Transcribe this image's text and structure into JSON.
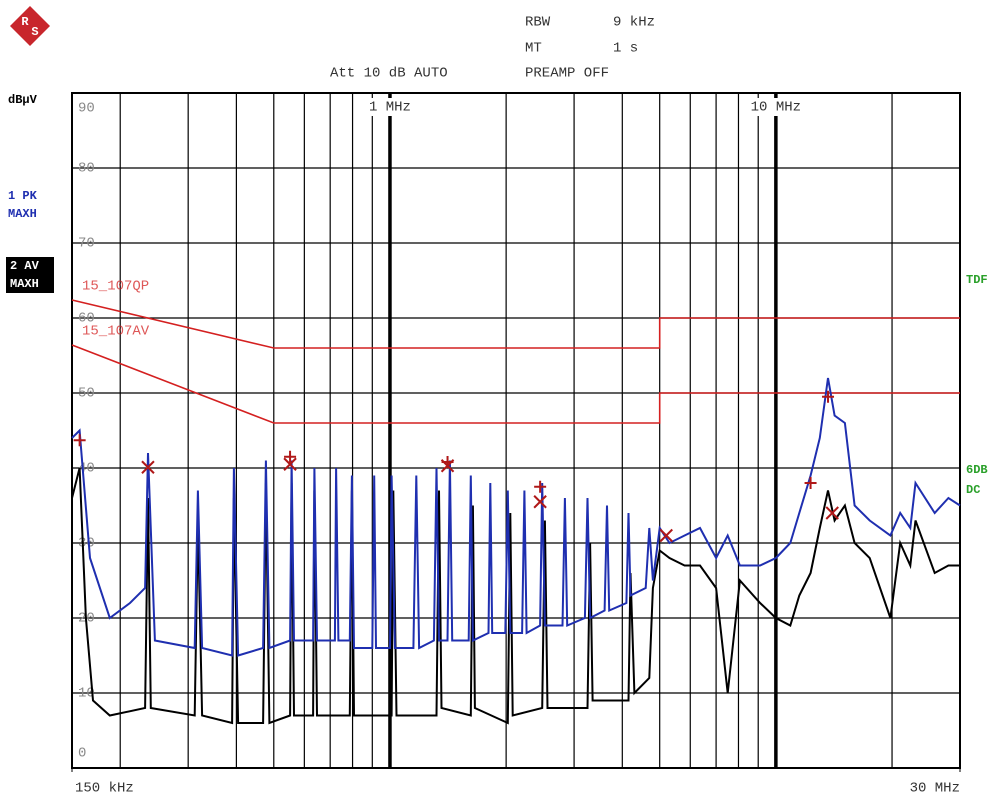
{
  "logo": [
    "R",
    "S"
  ],
  "settings": {
    "rbw_label": "RBW",
    "rbw": "9 kHz",
    "mt_label": "MT",
    "mt": "1 s",
    "att": "Att 10 dB AUTO",
    "preamp": "PREAMP OFF"
  },
  "side_labels": {
    "tdf": "TDF",
    "db": "6DB",
    "dc": "DC"
  },
  "chart_data": {
    "type": "line",
    "y_label": "dBµV",
    "log_x": true,
    "grid": true,
    "xlim": [
      0.15,
      30
    ],
    "xticks": [
      {
        "value": 0.15,
        "label": "150 kHz"
      },
      {
        "value": 1,
        "label": "1 MHz"
      },
      {
        "value": 10,
        "label": "10 MHz"
      },
      {
        "value": 30,
        "label": "30 MHz"
      }
    ],
    "x_minor_grid": [
      0.2,
      0.3,
      0.4,
      0.5,
      0.6,
      0.7,
      0.8,
      0.9,
      2,
      3,
      4,
      5,
      6,
      7,
      8,
      9,
      20
    ],
    "ylim": [
      0,
      90
    ],
    "yticks": [
      0,
      10,
      20,
      30,
      40,
      50,
      60,
      70,
      80,
      90
    ],
    "series": [
      {
        "name": "1 PK",
        "detector": "MAXH",
        "color": "#1f2fb0",
        "x": [
          0.15,
          0.157,
          0.167,
          0.188,
          0.212,
          0.232,
          0.236,
          0.246,
          0.312,
          0.318,
          0.326,
          0.39,
          0.394,
          0.404,
          0.469,
          0.477,
          0.487,
          0.551,
          0.556,
          0.564,
          0.632,
          0.637,
          0.647,
          0.72,
          0.725,
          0.735,
          0.787,
          0.797,
          0.807,
          0.9,
          0.91,
          0.92,
          1.0,
          1.01,
          1.03,
          1.15,
          1.17,
          1.19,
          1.3,
          1.32,
          1.34,
          1.41,
          1.43,
          1.45,
          1.6,
          1.62,
          1.64,
          1.8,
          1.82,
          1.84,
          1.99,
          2.02,
          2.05,
          2.2,
          2.23,
          2.26,
          2.45,
          2.48,
          2.52,
          2.8,
          2.84,
          2.88,
          3.2,
          3.25,
          3.3,
          3.6,
          3.65,
          3.7,
          4.1,
          4.15,
          4.2,
          4.6,
          4.7,
          4.8,
          5.0,
          5.3,
          5.8,
          6.36,
          7.0,
          7.5,
          8.07,
          9.1,
          10.0,
          10.9,
          11.5,
          12.3,
          13.0,
          13.65,
          14.2,
          15.1,
          16.0,
          17.5,
          19.8,
          21,
          22.3,
          23,
          25.8,
          28,
          30
        ],
        "values": [
          44,
          45,
          28,
          20,
          22,
          24,
          42,
          17,
          16,
          37,
          16,
          15,
          40,
          15,
          16,
          41,
          16,
          17,
          41,
          17,
          17,
          40,
          17,
          17,
          40,
          17,
          17,
          39,
          16,
          16,
          39,
          16,
          16,
          39,
          16,
          16,
          39,
          16,
          17,
          40,
          17,
          17,
          41,
          17,
          17,
          39,
          17,
          18,
          38,
          18,
          18,
          37,
          18,
          18,
          37,
          18,
          19,
          38,
          19,
          19,
          36,
          19,
          20,
          36,
          20,
          21,
          35,
          21,
          22,
          34,
          23,
          24,
          32,
          25,
          32,
          30,
          31,
          32,
          28,
          31,
          27,
          27,
          28,
          30,
          34,
          39,
          44,
          52,
          47,
          46,
          35,
          33,
          31,
          34,
          32,
          38,
          34,
          36,
          35
        ]
      },
      {
        "name": "2 AV",
        "detector": "MAXH",
        "color": "#000000",
        "x": [
          0.15,
          0.157,
          0.163,
          0.17,
          0.188,
          0.232,
          0.236,
          0.24,
          0.312,
          0.318,
          0.326,
          0.39,
          0.394,
          0.404,
          0.469,
          0.477,
          0.487,
          0.551,
          0.556,
          0.564,
          0.632,
          0.637,
          0.647,
          0.787,
          0.797,
          0.807,
          1.01,
          1.02,
          1.04,
          1.32,
          1.34,
          1.36,
          1.62,
          1.64,
          1.66,
          2.02,
          2.05,
          2.08,
          2.48,
          2.52,
          2.56,
          3.25,
          3.3,
          3.35,
          4.15,
          4.2,
          4.3,
          4.7,
          4.8,
          5.0,
          5.3,
          5.8,
          6.36,
          7.0,
          7.5,
          8.07,
          9.1,
          10.0,
          10.9,
          11.5,
          12.3,
          13.0,
          13.65,
          14.2,
          15.1,
          16.0,
          17.5,
          19.8,
          21,
          22.3,
          23,
          25.8,
          28,
          30
        ],
        "values": [
          36,
          40,
          20,
          9,
          7,
          8,
          36,
          8,
          7,
          33,
          7,
          6,
          36,
          6,
          6,
          38,
          6,
          7,
          38,
          7,
          7,
          37,
          7,
          7,
          37,
          7,
          7,
          37,
          7,
          7,
          37,
          8,
          7,
          35,
          8,
          6,
          34,
          7,
          8,
          33,
          8,
          8,
          30,
          9,
          9,
          26,
          10,
          12,
          24,
          29,
          28,
          27,
          27,
          24,
          10,
          25,
          22,
          20,
          19,
          23,
          26,
          32,
          37,
          33,
          35,
          30,
          28,
          20,
          30,
          27,
          33,
          26,
          27,
          27
        ]
      },
      {
        "name": "15_107QP",
        "color": "#d42020",
        "x": [
          0.15,
          0.5,
          5,
          5,
          30
        ],
        "values": [
          62.4,
          56,
          56,
          60,
          60
        ]
      },
      {
        "name": "15_107AV",
        "color": "#d42020",
        "x": [
          0.15,
          0.5,
          5,
          5,
          30
        ],
        "values": [
          56.4,
          46,
          46,
          50,
          50
        ]
      }
    ],
    "markers": [
      {
        "symbol": "plus",
        "color": "#b01818",
        "x": [
          0.157,
          0.551,
          1.41,
          2.45,
          12.3,
          13.65
        ],
        "values": [
          43.7,
          41.5,
          40.8,
          37.5,
          38,
          49.5
        ]
      },
      {
        "symbol": "cross",
        "color": "#b01818",
        "x": [
          0.236,
          0.551,
          1.41,
          2.45,
          5.2,
          14.0
        ],
        "values": [
          40.1,
          40.5,
          40.3,
          35.5,
          31,
          34
        ]
      }
    ]
  }
}
